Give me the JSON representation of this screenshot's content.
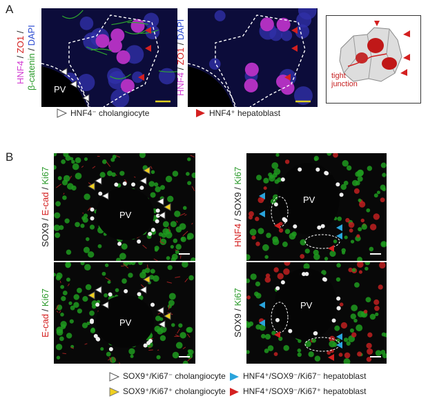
{
  "panel_a": {
    "label": "A",
    "image_1": {
      "stains": [
        [
          "HNF4",
          " / ",
          "ZO1",
          " /"
        ],
        [
          "β-catenin",
          " / ",
          "DAPI"
        ]
      ],
      "region": "PV"
    },
    "image_2": {
      "stains": [
        [
          "HNF4",
          " / ",
          "ZO1",
          " / ",
          "DAPI"
        ]
      ]
    },
    "diagram": {
      "annotation": "tight junction"
    },
    "legend": [
      "HNF4⁻ cholangiocyte",
      "HNF4⁺ hepatoblast"
    ]
  },
  "panel_b": {
    "label": "B",
    "images": [
      {
        "stains": [
          [
            "SOX9",
            " / ",
            "E-cad",
            " / ",
            "Ki67"
          ]
        ],
        "region": "PV"
      },
      {
        "stains": [
          [
            "E-cad",
            " / ",
            "Ki67"
          ]
        ],
        "region": "PV"
      },
      {
        "stains": [
          [
            "HNF4",
            " / ",
            "SOX9",
            " / ",
            "Ki67"
          ]
        ],
        "region": "PV"
      },
      {
        "stains": [
          [
            "SOX9",
            " / ",
            "Ki67"
          ]
        ],
        "region": "PV"
      }
    ],
    "legend": [
      "SOX9⁺/Ki67⁻ cholangiocyte",
      "HNF4⁺/SOX9⁻/Ki67⁻ hepatoblast",
      "SOX9⁺/Ki67⁺ cholangiocyte",
      "HNF4⁺/SOX9⁻/Ki67⁺ hepatoblast"
    ]
  }
}
